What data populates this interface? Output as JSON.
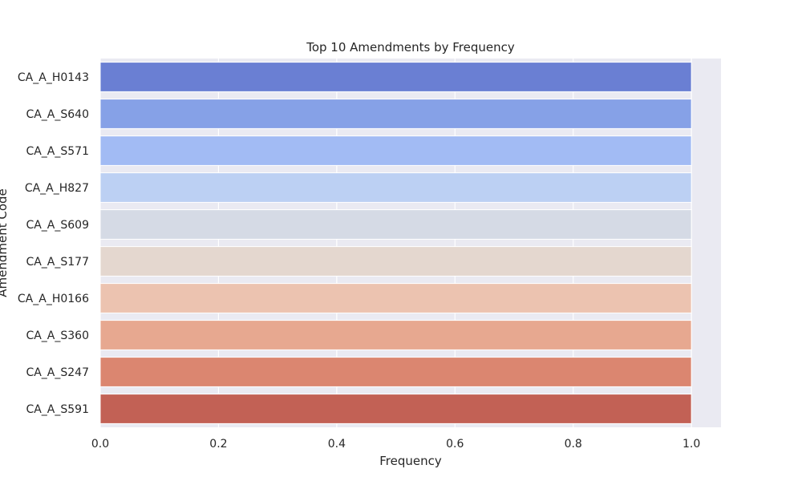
{
  "chart_data": {
    "type": "bar",
    "orientation": "horizontal",
    "title": "Top 10 Amendments by Frequency",
    "xlabel": "Frequency",
    "ylabel": "Amendment Code",
    "categories": [
      "CA_A_H0143",
      "CA_A_S640",
      "CA_A_S571",
      "CA_A_H827",
      "CA_A_S609",
      "CA_A_S177",
      "CA_A_H0166",
      "CA_A_S360",
      "CA_A_S247",
      "CA_A_S591"
    ],
    "values": [
      1,
      1,
      1,
      1,
      1,
      1,
      1,
      1,
      1,
      1
    ],
    "xlim": [
      0,
      1.05
    ],
    "xticks": [
      "0.0",
      "0.2",
      "0.4",
      "0.6",
      "0.8",
      "1.0"
    ],
    "grid": true,
    "colors": [
      "#6a7fd3",
      "#86a1e7",
      "#a2bbf4",
      "#bcd0f3",
      "#d5dae5",
      "#e4d7cf",
      "#ecc3b0",
      "#e7a890",
      "#db8670",
      "#c26155"
    ],
    "background": "#eaeaf2"
  }
}
